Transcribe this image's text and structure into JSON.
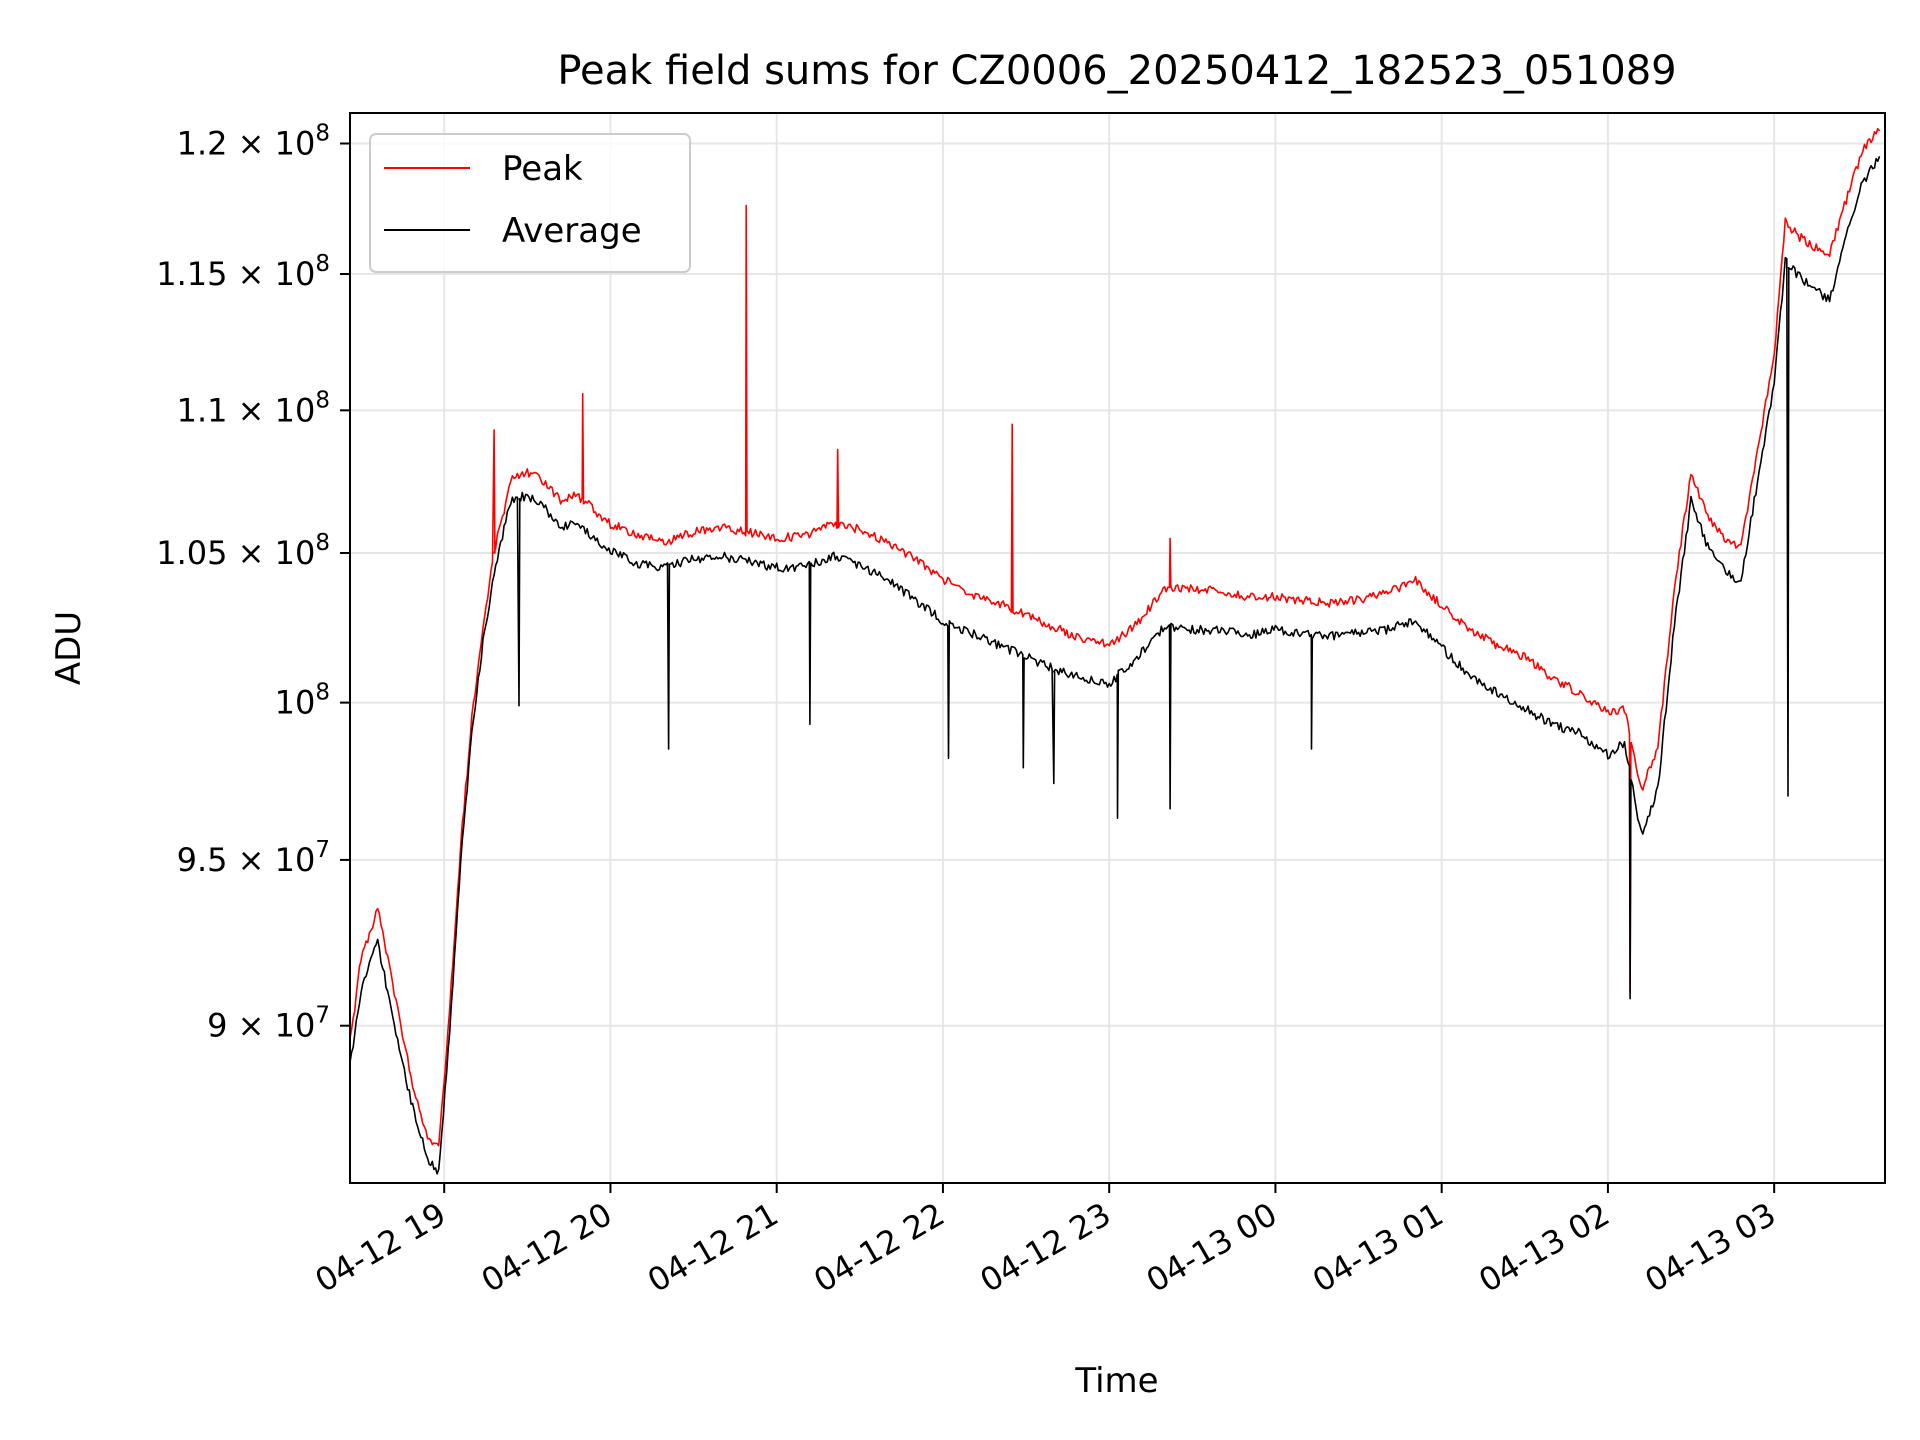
{
  "chart_data": {
    "type": "line",
    "title": "Peak field sums for CZ0006_20250412_182523_051089",
    "xlabel": "Time",
    "ylabel": "ADU",
    "yscale": "log",
    "grid": true,
    "legend": "upper-left",
    "xlim": [
      "2025-04-12 18:26",
      "2025-04-13 03:40"
    ],
    "ylim": [
      85500000,
      121200000
    ],
    "x_ticks": [
      {
        "value": "2025-04-12 19:00",
        "label": "04-12 19"
      },
      {
        "value": "2025-04-12 20:00",
        "label": "04-12 20"
      },
      {
        "value": "2025-04-12 21:00",
        "label": "04-12 21"
      },
      {
        "value": "2025-04-12 22:00",
        "label": "04-12 22"
      },
      {
        "value": "2025-04-12 23:00",
        "label": "04-12 23"
      },
      {
        "value": "2025-04-13 00:00",
        "label": "04-13 00"
      },
      {
        "value": "2025-04-13 01:00",
        "label": "04-13 01"
      },
      {
        "value": "2025-04-13 02:00",
        "label": "04-13 02"
      },
      {
        "value": "2025-04-13 03:00",
        "label": "04-13 03"
      }
    ],
    "y_ticks": [
      {
        "value": 90000000,
        "mantissa": "9 × 10",
        "exp": "7"
      },
      {
        "value": 95000000,
        "mantissa": "9.5 × 10",
        "exp": "7"
      },
      {
        "value": 100000000,
        "mantissa": "10",
        "exp": "8"
      },
      {
        "value": 105000000,
        "mantissa": "1.05 × 10",
        "exp": "8"
      },
      {
        "value": 110000000,
        "mantissa": "1.1 × 10",
        "exp": "8"
      },
      {
        "value": 115000000,
        "mantissa": "1.15 × 10",
        "exp": "8"
      },
      {
        "value": 120000000,
        "mantissa": "1.2 × 10",
        "exp": "8"
      }
    ],
    "series": [
      {
        "name": "Peak",
        "color": "#ff0000",
        "x": [
          "2025-04-12 18:26",
          "2025-04-12 18:30",
          "2025-04-12 18:36",
          "2025-04-12 18:42",
          "2025-04-12 18:48",
          "2025-04-12 18:54",
          "2025-04-12 18:58",
          "2025-04-12 19:02",
          "2025-04-12 19:06",
          "2025-04-12 19:10",
          "2025-04-12 19:14",
          "2025-04-12 19:18",
          "2025-04-12 19:24",
          "2025-04-12 19:30",
          "2025-04-12 19:36",
          "2025-04-12 19:42",
          "2025-04-12 19:48",
          "2025-04-12 19:54",
          "2025-04-12 20:00",
          "2025-04-12 20:10",
          "2025-04-12 20:20",
          "2025-04-12 20:30",
          "2025-04-12 20:40",
          "2025-04-12 20:50",
          "2025-04-12 21:00",
          "2025-04-12 21:10",
          "2025-04-12 21:20",
          "2025-04-12 21:30",
          "2025-04-12 21:40",
          "2025-04-12 21:50",
          "2025-04-12 22:00",
          "2025-04-12 22:10",
          "2025-04-12 22:20",
          "2025-04-12 22:30",
          "2025-04-12 22:40",
          "2025-04-12 22:50",
          "2025-04-12 23:00",
          "2025-04-12 23:10",
          "2025-04-12 23:20",
          "2025-04-12 23:30",
          "2025-04-12 23:40",
          "2025-04-12 23:50",
          "2025-04-13 00:00",
          "2025-04-13 00:10",
          "2025-04-13 00:20",
          "2025-04-13 00:30",
          "2025-04-13 00:40",
          "2025-04-13 00:50",
          "2025-04-13 01:00",
          "2025-04-13 01:10",
          "2025-04-13 01:20",
          "2025-04-13 01:30",
          "2025-04-13 01:40",
          "2025-04-13 01:50",
          "2025-04-13 02:00",
          "2025-04-13 02:06",
          "2025-04-13 02:12",
          "2025-04-13 02:18",
          "2025-04-13 02:24",
          "2025-04-13 02:30",
          "2025-04-13 02:36",
          "2025-04-13 02:42",
          "2025-04-13 02:48",
          "2025-04-13 02:54",
          "2025-04-13 03:00",
          "2025-04-13 03:04",
          "2025-04-13 03:08",
          "2025-04-13 03:14",
          "2025-04-13 03:20",
          "2025-04-13 03:26",
          "2025-04-13 03:32",
          "2025-04-13 03:38"
        ],
        "y": [
          89500000,
          92000000,
          93500000,
          91000000,
          88500000,
          86800000,
          86500000,
          90500000,
          95500000,
          99500000,
          102500000,
          105000000,
          107500000,
          107800000,
          107500000,
          106800000,
          107000000,
          106500000,
          106000000,
          105600000,
          105400000,
          105700000,
          105900000,
          105700000,
          105500000,
          105600000,
          106000000,
          105800000,
          105400000,
          104800000,
          104100000,
          103600000,
          103300000,
          102900000,
          102500000,
          102100000,
          101900000,
          102600000,
          103800000,
          103800000,
          103700000,
          103500000,
          103500000,
          103400000,
          103300000,
          103400000,
          103600000,
          104100000,
          103200000,
          102400000,
          101900000,
          101500000,
          100800000,
          100300000,
          99700000,
          99800000,
          97200000,
          98500000,
          103800000,
          107800000,
          106300000,
          105500000,
          105200000,
          108500000,
          112000000,
          117000000,
          116500000,
          116000000,
          115800000,
          117800000,
          119800000,
          120500000
        ],
        "spikes": [
          {
            "x": "2025-04-12 19:18",
            "y": 109300000
          },
          {
            "x": "2025-04-12 19:50",
            "y": 110600000
          },
          {
            "x": "2025-04-12 20:49",
            "y": 117600000
          },
          {
            "x": "2025-04-12 21:22",
            "y": 108600000
          },
          {
            "x": "2025-04-12 22:25",
            "y": 109500000
          },
          {
            "x": "2025-04-12 23:22",
            "y": 105500000
          },
          {
            "x": "2025-04-13 02:08",
            "y": 91000000
          }
        ]
      },
      {
        "name": "Average",
        "color": "#000000",
        "x": [
          "2025-04-12 18:26",
          "2025-04-12 18:30",
          "2025-04-12 18:36",
          "2025-04-12 18:42",
          "2025-04-12 18:48",
          "2025-04-12 18:54",
          "2025-04-12 18:58",
          "2025-04-12 19:02",
          "2025-04-12 19:06",
          "2025-04-12 19:10",
          "2025-04-12 19:14",
          "2025-04-12 19:18",
          "2025-04-12 19:24",
          "2025-04-12 19:30",
          "2025-04-12 19:36",
          "2025-04-12 19:42",
          "2025-04-12 19:48",
          "2025-04-12 19:54",
          "2025-04-12 20:00",
          "2025-04-12 20:10",
          "2025-04-12 20:20",
          "2025-04-12 20:30",
          "2025-04-12 20:40",
          "2025-04-12 20:50",
          "2025-04-12 21:00",
          "2025-04-12 21:10",
          "2025-04-12 21:20",
          "2025-04-12 21:30",
          "2025-04-12 21:40",
          "2025-04-12 21:50",
          "2025-04-12 22:00",
          "2025-04-12 22:10",
          "2025-04-12 22:20",
          "2025-04-12 22:30",
          "2025-04-12 22:40",
          "2025-04-12 22:50",
          "2025-04-12 23:00",
          "2025-04-12 23:10",
          "2025-04-12 23:20",
          "2025-04-12 23:30",
          "2025-04-12 23:40",
          "2025-04-12 23:50",
          "2025-04-13 00:00",
          "2025-04-13 00:10",
          "2025-04-13 00:20",
          "2025-04-13 00:30",
          "2025-04-13 00:40",
          "2025-04-13 00:50",
          "2025-04-13 01:00",
          "2025-04-13 01:10",
          "2025-04-13 01:20",
          "2025-04-13 01:30",
          "2025-04-13 01:40",
          "2025-04-13 01:50",
          "2025-04-13 02:00",
          "2025-04-13 02:06",
          "2025-04-13 02:12",
          "2025-04-13 02:18",
          "2025-04-13 02:24",
          "2025-04-13 02:30",
          "2025-04-13 02:36",
          "2025-04-13 02:42",
          "2025-04-13 02:48",
          "2025-04-13 02:54",
          "2025-04-13 03:00",
          "2025-04-13 03:04",
          "2025-04-13 03:08",
          "2025-04-13 03:14",
          "2025-04-13 03:20",
          "2025-04-13 03:26",
          "2025-04-13 03:32",
          "2025-04-13 03:38"
        ],
        "y": [
          88800000,
          91000000,
          92500000,
          90000000,
          87800000,
          86200000,
          85800000,
          89800000,
          95000000,
          99000000,
          102000000,
          104300000,
          106800000,
          107000000,
          106600000,
          105900000,
          106000000,
          105500000,
          105100000,
          104600000,
          104500000,
          104800000,
          104900000,
          104700000,
          104500000,
          104500000,
          104900000,
          104600000,
          104100000,
          103400000,
          102700000,
          102300000,
          101900000,
          101500000,
          101100000,
          100800000,
          100600000,
          101500000,
          102500000,
          102400000,
          102400000,
          102200000,
          102400000,
          102300000,
          102200000,
          102300000,
          102400000,
          102700000,
          101800000,
          100900000,
          100300000,
          99800000,
          99300000,
          99000000,
          98300000,
          98700000,
          95800000,
          97200000,
          102600000,
          106800000,
          105200000,
          104400000,
          104000000,
          107500000,
          111000000,
          115500000,
          115000000,
          114500000,
          114000000,
          116500000,
          118500000,
          119500000
        ],
        "spikes": [
          {
            "x": "2025-04-12 19:27",
            "y": 99900000
          },
          {
            "x": "2025-04-12 20:21",
            "y": 98500000
          },
          {
            "x": "2025-04-12 21:12",
            "y": 99300000
          },
          {
            "x": "2025-04-12 22:02",
            "y": 98200000
          },
          {
            "x": "2025-04-12 22:29",
            "y": 97900000
          },
          {
            "x": "2025-04-12 22:40",
            "y": 97400000
          },
          {
            "x": "2025-04-12 23:03",
            "y": 96300000
          },
          {
            "x": "2025-04-12 23:22",
            "y": 96600000
          },
          {
            "x": "2025-04-13 00:13",
            "y": 98500000
          },
          {
            "x": "2025-04-13 02:08",
            "y": 90800000
          },
          {
            "x": "2025-04-13 03:05",
            "y": 97000000
          }
        ]
      }
    ]
  }
}
